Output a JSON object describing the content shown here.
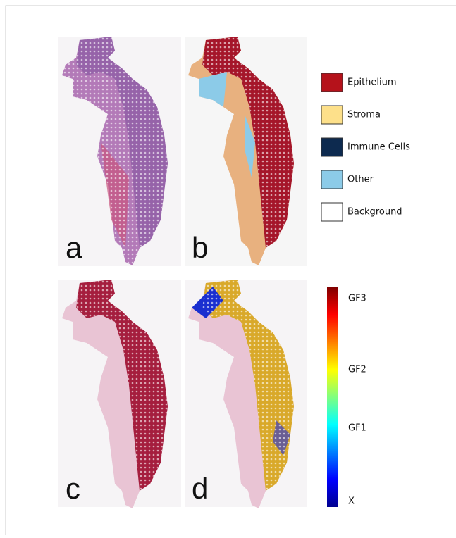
{
  "panels": [
    {
      "label": "a"
    },
    {
      "label": "b"
    },
    {
      "label": "c"
    },
    {
      "label": "d"
    }
  ],
  "legend": {
    "items": [
      {
        "label": "Epithelium",
        "color": "#b5121b"
      },
      {
        "label": "Stroma",
        "color": "#fde08a"
      },
      {
        "label": "Immune Cells",
        "color": "#0d2a4f"
      },
      {
        "label": "Other",
        "color": "#8ccbe8"
      },
      {
        "label": "Background",
        "color": "#ffffff"
      }
    ]
  },
  "colorbar": {
    "labels": [
      "GF3",
      "GF2",
      "GF1",
      "X"
    ]
  }
}
